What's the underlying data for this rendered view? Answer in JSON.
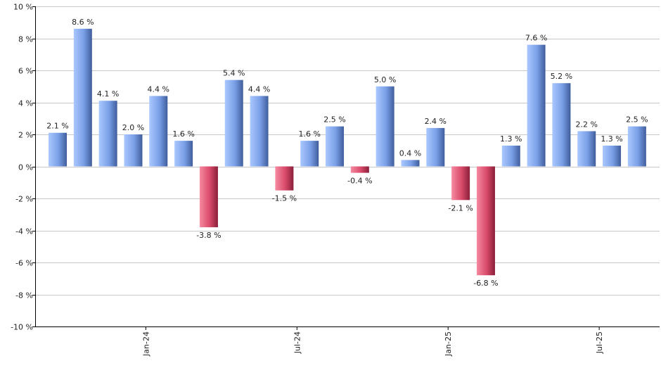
{
  "chart_data": {
    "type": "bar",
    "title": "",
    "xlabel": "",
    "ylabel": "",
    "ylim": [
      -10,
      10
    ],
    "y_ticks": [
      {
        "value": 10,
        "label": "10 %"
      },
      {
        "value": 8,
        "label": "8 %"
      },
      {
        "value": 6,
        "label": "6 %"
      },
      {
        "value": 4,
        "label": "4 %"
      },
      {
        "value": 2,
        "label": "2 %"
      },
      {
        "value": 0,
        "label": "0 %"
      },
      {
        "value": -2,
        "label": "-2 %"
      },
      {
        "value": -4,
        "label": "-4 %"
      },
      {
        "value": -6,
        "label": "-6 %"
      },
      {
        "value": -8,
        "label": "-8 %"
      },
      {
        "value": -10,
        "label": "-10 %"
      }
    ],
    "x_ticks": [
      {
        "index": 3.5,
        "label": "Jan-24"
      },
      {
        "index": 9.5,
        "label": "Jul-24"
      },
      {
        "index": 15.5,
        "label": "Jan-25"
      },
      {
        "index": 21.5,
        "label": "Jul-25"
      }
    ],
    "values": [
      2.1,
      8.6,
      4.1,
      2.0,
      4.4,
      1.6,
      -3.8,
      5.4,
      4.4,
      -1.5,
      1.6,
      2.5,
      -0.4,
      5.0,
      0.4,
      2.4,
      -2.1,
      -6.8,
      1.3,
      7.6,
      5.2,
      2.2,
      1.3,
      2.5
    ],
    "value_labels": [
      "2.1 %",
      "8.6 %",
      "4.1 %",
      "2.0 %",
      "4.4 %",
      "1.6 %",
      "-3.8 %",
      "5.4 %",
      "4.4 %",
      "-1.5 %",
      "1.6 %",
      "2.5 %",
      "-0.4 %",
      "5.0 %",
      "0.4 %",
      "2.4 %",
      "-2.1 %",
      "-6.8 %",
      "1.3 %",
      "7.6 %",
      "5.2 %",
      "2.2 %",
      "1.3 %",
      "2.5 %"
    ],
    "grid": true,
    "colors": {
      "positive_light": "#aac8ff",
      "positive_mid": "#7a9fe6",
      "positive_dark": "#3f5d9c",
      "negative_light": "#f58aa0",
      "negative_mid": "#d84a6a",
      "negative_dark": "#8a1f3a",
      "grid": "#c8c8c8",
      "axis": "#000000"
    }
  }
}
